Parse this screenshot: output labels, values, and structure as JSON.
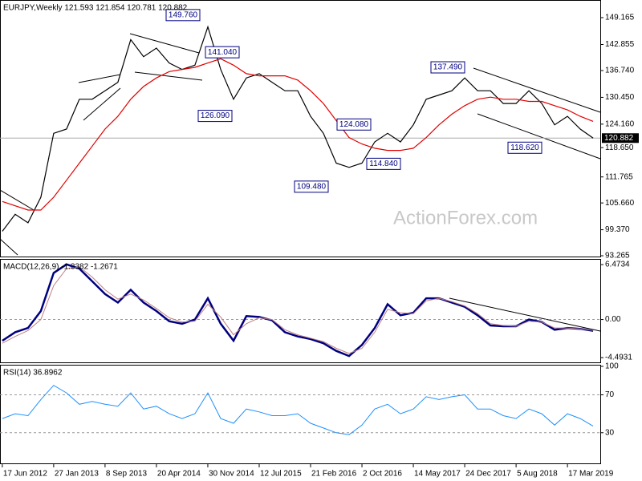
{
  "chart_data": {
    "type": "line",
    "x": [
      "2012-06-17",
      "2012-08-12",
      "2012-10-07",
      "2012-12-02",
      "2013-01-27",
      "2013-03-24",
      "2013-05-19",
      "2013-07-14",
      "2013-09-08",
      "2013-11-03",
      "2013-12-29",
      "2014-02-23",
      "2014-04-20",
      "2014-06-15",
      "2014-08-10",
      "2014-10-05",
      "2014-11-30",
      "2015-01-25",
      "2015-03-22",
      "2015-05-17",
      "2015-07-12",
      "2015-09-06",
      "2015-11-01",
      "2015-12-27",
      "2016-02-21",
      "2016-04-17",
      "2016-06-12",
      "2016-08-07",
      "2016-10-02",
      "2016-11-27",
      "2017-01-22",
      "2017-03-19",
      "2017-05-14",
      "2017-07-09",
      "2017-09-03",
      "2017-10-29",
      "2017-12-24",
      "2018-02-18",
      "2018-04-15",
      "2018-06-10",
      "2018-08-05",
      "2018-09-30",
      "2018-11-25",
      "2019-01-20",
      "2019-03-17",
      "2019-05-12",
      "2019-07-07"
    ],
    "xlim": [
      "2012-06-07",
      "2019-08-07"
    ],
    "xticks": [
      {
        "value": "2012-06-17",
        "label": "17 Jun 2012"
      },
      {
        "value": "2013-01-27",
        "label": "27 Jan 2013"
      },
      {
        "value": "2013-09-08",
        "label": "8 Sep 2013"
      },
      {
        "value": "2014-04-20",
        "label": "20 Apr 2014"
      },
      {
        "value": "2014-11-30",
        "label": "30 Nov 2014"
      },
      {
        "value": "2015-07-12",
        "label": "12 Jul 2015"
      },
      {
        "value": "2016-02-21",
        "label": "21 Feb 2016"
      },
      {
        "value": "2016-10-02",
        "label": "2 Oct 2016"
      },
      {
        "value": "2017-05-14",
        "label": "14 May 2017"
      },
      {
        "value": "2017-12-24",
        "label": "24 Dec 2017"
      },
      {
        "value": "2018-08-05",
        "label": "5 Aug 2018"
      },
      {
        "value": "2019-03-17",
        "label": "17 Mar 2019"
      }
    ],
    "watermark": "ActionForex.com",
    "panels": [
      {
        "title": "EURJPY,Weekly  121.593 121.854 120.781 120.882",
        "ylim": [
          93.08,
          153.3
        ],
        "yticks": [
          149.165,
          142.855,
          {
            "value": 136.74,
            "label": "136.740"
          },
          {
            "value": 130.45,
            "label": "130.450"
          },
          {
            "value": 124.16,
            "label": "124.160"
          },
          {
            "value": 118.65,
            "label": "118.650"
          },
          111.765,
          {
            "value": 105.66,
            "label": "105.660"
          },
          {
            "value": 99.37,
            "label": "99.370"
          },
          93.265
        ],
        "grid": false,
        "last": 120.882,
        "series": [
          {
            "color": "#000000",
            "values": [
              99,
              103,
              101,
              107,
              122,
              123,
              130,
              130,
              132,
              134,
              144,
              140,
              142,
              138.5,
              137,
              138,
              147,
              137,
              130,
              135,
              136,
              134,
              132,
              132,
              126,
              122,
              115,
              114,
              115,
              120,
              122,
              120,
              124,
              130,
              131,
              132,
              135,
              132,
              132,
              129,
              129,
              132,
              129,
              124,
              126,
              123,
              120.882
            ]
          },
          {
            "color": "#e00000",
            "values": [
              106,
              105,
              104,
              104,
              107,
              111,
              115,
              119,
              123,
              126,
              130,
              133,
              135,
              136.5,
              137,
              137.5,
              138.5,
              139.5,
              138,
              136,
              135.5,
              135.5,
              135.5,
              134.5,
              132,
              129,
              125,
              121,
              119.5,
              118.5,
              118,
              118,
              118.5,
              121,
              124,
              126.5,
              128.5,
              130,
              130.5,
              130,
              130,
              129.5,
              129.5,
              128.5,
              127.5,
              126,
              124.8
            ]
          }
        ],
        "annotations": [
          {
            "value": 149.76,
            "label": "149.760"
          },
          {
            "value": 141.04,
            "label": "141.040"
          },
          {
            "value": 126.09,
            "label": "126.090"
          },
          {
            "value": 124.08,
            "label": "124.080"
          },
          {
            "value": 109.48,
            "label": "109.480"
          },
          {
            "value": 114.84,
            "label": "114.840"
          },
          {
            "value": 137.49,
            "label": "137.490"
          },
          {
            "value": 118.62,
            "label": "118.620"
          }
        ]
      },
      {
        "title": "MACD(12,26,9) -1.3382 -1.2671",
        "ylim": [
          -5.05,
          7.14
        ],
        "yticks": [
          6.4734,
          {
            "value": 0,
            "label": "0.00"
          },
          -4.4931
        ],
        "grid": true,
        "series": [
          {
            "color": "#000080",
            "width": 2.5,
            "values": [
              -2.5,
              -1.5,
              -1,
              1,
              5.5,
              6.5,
              6,
              4.5,
              3,
              2,
              3.5,
              2,
              1,
              -0.2,
              -0.5,
              0,
              2.5,
              -0.5,
              -2.5,
              0.4,
              0.3,
              -0.1,
              -1.5,
              -2,
              -2.3,
              -2.8,
              -3.7,
              -4.3,
              -3,
              -1,
              1.8,
              0.5,
              0.8,
              2.5,
              2.5,
              2,
              1.5,
              0.5,
              -0.7,
              -0.8,
              -0.8,
              0,
              -0.3,
              -1.2,
              -1,
              -1.1,
              -1.33
            ]
          },
          {
            "color": "#c08080",
            "width": 1,
            "values": [
              -2.8,
              -2,
              -1.3,
              0,
              4,
              6,
              6.2,
              5,
              3.5,
              2.4,
              3,
              2.3,
              1.3,
              0.2,
              -0.3,
              -0.2,
              1.8,
              0.3,
              -1.8,
              -0.5,
              0.2,
              0,
              -1.2,
              -1.8,
              -2.2,
              -2.6,
              -3.4,
              -4,
              -3.4,
              -1.5,
              1.2,
              0.8,
              0.7,
              2.2,
              2.5,
              2.1,
              1.6,
              0.7,
              -0.5,
              -0.7,
              -0.8,
              -0.2,
              -0.3,
              -1,
              -1,
              -1.1,
              -1.27
            ]
          }
        ]
      },
      {
        "title": "RSI(14) 36.8962",
        "ylim": [
          -2.3,
          101.7
        ],
        "yticks": [
          100,
          70,
          30
        ],
        "grid": true,
        "series": [
          {
            "color": "#1e90ff",
            "width": 1,
            "values": [
              45,
              50,
              48,
              65,
              80,
              72,
              60,
              63,
              60,
              58,
              72,
              55,
              58,
              50,
              45,
              50,
              72,
              45,
              40,
              55,
              52,
              48,
              48,
              50,
              40,
              35,
              30,
              28,
              38,
              55,
              60,
              50,
              55,
              68,
              65,
              68,
              70,
              55,
              55,
              48,
              45,
              55,
              50,
              38,
              50,
              45,
              36.8962
            ]
          }
        ]
      }
    ]
  }
}
